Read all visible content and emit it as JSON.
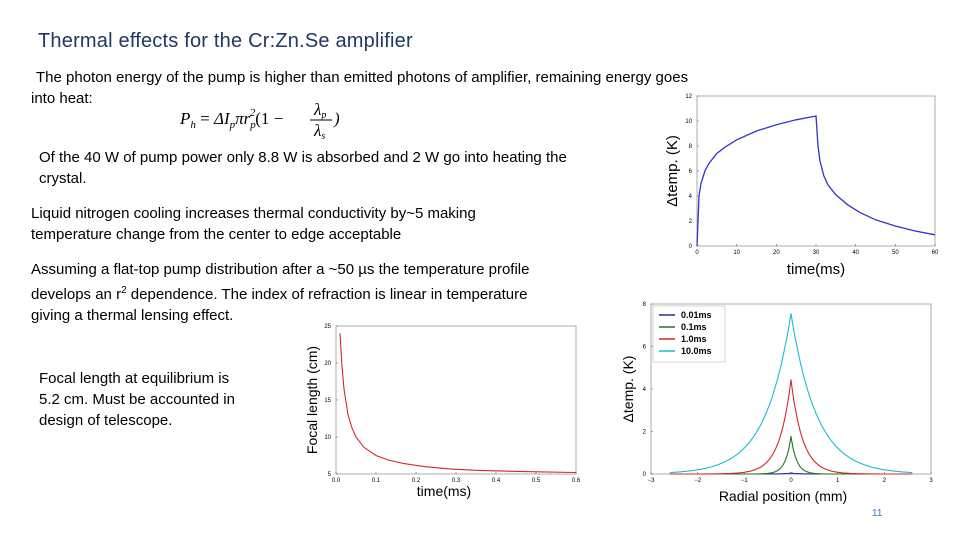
{
  "slide": {
    "title": "Thermal effects for the Cr:Zn.Se amplifier",
    "page_number": "11",
    "p1_line1": "The photon energy of the pump is higher than emitted photons of amplifier, remaining energy goes",
    "p1_line2": "into heat:",
    "formula_latex": "P_h = \\Delta I_p \\pi r_p^2 (1 - \\lambda_p / \\lambda_s)",
    "p2_line1": "Of the 40 W of pump power only 8.8 W is absorbed and 2 W go into heating the",
    "p2_line2": "crystal.",
    "p3_line1": "Liquid nitrogen cooling increases thermal conductivity by~5 making",
    "p3_line2": "temperature change from the center to edge acceptable",
    "p4_line1": "Assuming a flat-top pump distribution after a ~50 µs the temperature profile",
    "p4_line2_pre": "develops an r",
    "p4_line2_sup": "2",
    "p4_line2_post": " dependence. The index of refraction is linear in temperature",
    "p4_line3": "giving a thermal lensing effect.",
    "p5_line1": "Focal length at equilibrium is",
    "p5_line2": "5.2 cm. Must be accounted in",
    "p5_line3": "design of telescope."
  },
  "chart_data": [
    {
      "type": "line",
      "xlabel": "time(ms)",
      "ylabel": "Δtemp. (K)",
      "xlim": [
        0,
        60
      ],
      "ylim": [
        0,
        12
      ],
      "xticks": [
        "0",
        "10",
        "20",
        "30",
        "40",
        "50",
        "60"
      ],
      "yticks": [
        "0",
        "2",
        "4",
        "6",
        "8",
        "10",
        "12"
      ],
      "color": "#3333cc",
      "x": [
        0,
        0.5,
        1,
        2,
        3,
        5,
        7,
        10,
        15,
        20,
        25,
        30,
        30.5,
        31,
        32,
        33,
        35,
        38,
        41,
        45,
        50,
        55,
        60
      ],
      "y": [
        0,
        4.0,
        5.0,
        6.0,
        6.6,
        7.4,
        7.9,
        8.5,
        9.2,
        9.7,
        10.1,
        10.4,
        8.0,
        6.8,
        5.6,
        4.9,
        4.1,
        3.3,
        2.7,
        2.1,
        1.6,
        1.2,
        0.9
      ]
    },
    {
      "type": "line",
      "xlabel": "Radial position (mm)",
      "ylabel": "Δtemp. (K)",
      "xlim": [
        -3,
        3
      ],
      "ylim": [
        0,
        9
      ],
      "xticks": [
        "−3",
        "−2",
        "−1",
        "0",
        "1",
        "2",
        "3"
      ],
      "yticks": [
        "0",
        "2",
        "4",
        "6",
        "8"
      ],
      "legend_position": "top-left",
      "series": [
        {
          "name": "0.01ms",
          "color": "#1f2f9f",
          "peak": 0.05,
          "width": 0.15
        },
        {
          "name": "0.1ms",
          "color": "#1a7a1a",
          "peak": 2.0,
          "width": 0.12
        },
        {
          "name": "1.0ms",
          "color": "#d62728",
          "peak": 5.0,
          "width": 0.25
        },
        {
          "name": "10.0ms",
          "color": "#17becf",
          "peak": 8.5,
          "width": 0.55
        }
      ]
    },
    {
      "type": "line",
      "xlabel": "time(ms)",
      "ylabel": "Focal length (cm)",
      "xlim": [
        0,
        0.6
      ],
      "ylim": [
        5,
        25
      ],
      "xticks": [
        "0.0",
        "0.1",
        "0.2",
        "0.3",
        "0.4",
        "0.5",
        "0.6"
      ],
      "yticks": [
        "5",
        "10",
        "15",
        "20",
        "25"
      ],
      "color": "#d62728",
      "x": [
        0.01,
        0.015,
        0.02,
        0.03,
        0.04,
        0.05,
        0.07,
        0.1,
        0.13,
        0.17,
        0.22,
        0.28,
        0.35,
        0.45,
        0.6
      ],
      "y": [
        24.0,
        19.5,
        16.5,
        13.0,
        11.2,
        10.0,
        8.6,
        7.5,
        6.9,
        6.4,
        6.0,
        5.7,
        5.5,
        5.35,
        5.2
      ]
    }
  ]
}
